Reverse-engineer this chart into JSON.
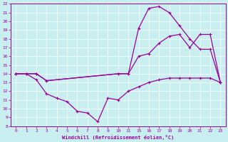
{
  "xlabel": "Windchill (Refroidissement éolien,°C)",
  "background_color": "#c8eef0",
  "line_color": "#990099",
  "ylim": [
    8,
    22
  ],
  "yticks": [
    8,
    9,
    10,
    11,
    12,
    13,
    14,
    15,
    16,
    17,
    18,
    19,
    20,
    21,
    22
  ],
  "xtick_labels": [
    "0",
    "1",
    "2",
    "3",
    "4",
    "5",
    "6",
    "7",
    "8",
    "9",
    "10",
    "11",
    "15",
    "16",
    "17",
    "18",
    "19",
    "20",
    "21",
    "22",
    "23"
  ],
  "line1_xi": [
    0,
    1,
    2,
    3,
    10,
    11,
    12,
    13,
    14,
    15,
    16,
    17,
    18,
    19,
    20
  ],
  "line1_y": [
    14,
    14,
    14,
    13.2,
    14.0,
    14.0,
    16.0,
    16.3,
    17.5,
    18.3,
    18.5,
    17.0,
    18.5,
    18.5,
    13.0
  ],
  "line2_xi": [
    0,
    1,
    2,
    3,
    4,
    5,
    6,
    7,
    8,
    9,
    10,
    11,
    12,
    13,
    14,
    15,
    16,
    17,
    18,
    19,
    20
  ],
  "line2_y": [
    14.0,
    14.0,
    13.3,
    11.7,
    11.2,
    10.8,
    9.7,
    9.5,
    8.5,
    11.2,
    11.0,
    12.0,
    12.5,
    13.0,
    13.3,
    13.5,
    13.5,
    13.5,
    13.5,
    13.5,
    13.0
  ],
  "line3_xi": [
    0,
    1,
    2,
    3,
    10,
    11,
    12,
    13,
    14,
    15,
    16,
    17,
    18,
    19,
    20
  ],
  "line3_y": [
    14,
    14,
    14,
    13.2,
    14.0,
    14.0,
    19.2,
    21.5,
    21.7,
    21.0,
    19.5,
    18.0,
    16.8,
    16.8,
    13.0
  ],
  "marker": "+"
}
